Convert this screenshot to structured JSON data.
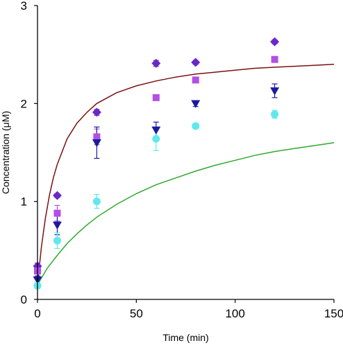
{
  "chart_data": {
    "type": "scatter",
    "xlabel": "Time (min)",
    "ylabel": "Concentration (μM)",
    "xlim": [
      0,
      150
    ],
    "ylim": [
      0,
      3
    ],
    "x_ticks": [
      0,
      50,
      100,
      150
    ],
    "y_ticks": [
      0,
      1,
      2,
      3
    ],
    "grid": false,
    "legend": "none",
    "series": [
      {
        "marker": "diamond",
        "color": "#6a28c8",
        "points": [
          {
            "x": 0,
            "y": 0.34,
            "err": 0.03
          },
          {
            "x": 10,
            "y": 1.06,
            "err": 0.02
          },
          {
            "x": 30,
            "y": 1.91,
            "err": 0.03
          },
          {
            "x": 60,
            "y": 2.41,
            "err": 0.03
          },
          {
            "x": 80,
            "y": 2.42,
            "err": 0.02
          },
          {
            "x": 120,
            "y": 2.63,
            "err": 0.02
          }
        ]
      },
      {
        "marker": "square",
        "color": "#b44ee6",
        "points": [
          {
            "x": 0,
            "y": 0.29,
            "err": 0.03
          },
          {
            "x": 10,
            "y": 0.88,
            "err": 0.08
          },
          {
            "x": 30,
            "y": 1.66,
            "err": 0.08
          },
          {
            "x": 60,
            "y": 2.06,
            "err": 0.02
          },
          {
            "x": 80,
            "y": 2.24,
            "err": 0.02
          },
          {
            "x": 120,
            "y": 2.45,
            "err": 0.02
          }
        ]
      },
      {
        "marker": "triangle-down",
        "color": "#1a1aa0",
        "points": [
          {
            "x": 0,
            "y": 0.2,
            "err": 0.04
          },
          {
            "x": 10,
            "y": 0.76,
            "err": 0.1
          },
          {
            "x": 30,
            "y": 1.6,
            "err": 0.16
          },
          {
            "x": 60,
            "y": 1.73,
            "err": 0.08
          },
          {
            "x": 80,
            "y": 2.0,
            "err": 0.03
          },
          {
            "x": 120,
            "y": 2.13,
            "err": 0.07
          }
        ]
      },
      {
        "marker": "circle",
        "color": "#5fe8ee",
        "points": [
          {
            "x": 0,
            "y": 0.14,
            "err": 0.03
          },
          {
            "x": 10,
            "y": 0.6,
            "err": 0.08
          },
          {
            "x": 30,
            "y": 1.0,
            "err": 0.07
          },
          {
            "x": 60,
            "y": 1.64,
            "err": 0.12
          },
          {
            "x": 80,
            "y": 1.77,
            "err": 0.02
          },
          {
            "x": 120,
            "y": 1.89,
            "err": 0.04
          }
        ]
      }
    ],
    "fit_curves": [
      {
        "color": "#7a1010",
        "points": [
          {
            "x": 0,
            "y": 0.15
          },
          {
            "x": 2,
            "y": 0.54
          },
          {
            "x": 4,
            "y": 0.83
          },
          {
            "x": 6,
            "y": 1.06
          },
          {
            "x": 8,
            "y": 1.24
          },
          {
            "x": 10,
            "y": 1.38
          },
          {
            "x": 15,
            "y": 1.64
          },
          {
            "x": 20,
            "y": 1.8
          },
          {
            "x": 25,
            "y": 1.91
          },
          {
            "x": 30,
            "y": 2.0
          },
          {
            "x": 40,
            "y": 2.11
          },
          {
            "x": 50,
            "y": 2.18
          },
          {
            "x": 60,
            "y": 2.23
          },
          {
            "x": 70,
            "y": 2.27
          },
          {
            "x": 80,
            "y": 2.3
          },
          {
            "x": 90,
            "y": 2.32
          },
          {
            "x": 100,
            "y": 2.34
          },
          {
            "x": 110,
            "y": 2.36
          },
          {
            "x": 120,
            "y": 2.37
          },
          {
            "x": 130,
            "y": 2.38
          },
          {
            "x": 140,
            "y": 2.39
          },
          {
            "x": 150,
            "y": 2.4
          }
        ]
      },
      {
        "color": "#2ea82e",
        "points": [
          {
            "x": 0,
            "y": 0.15
          },
          {
            "x": 5,
            "y": 0.32
          },
          {
            "x": 10,
            "y": 0.45
          },
          {
            "x": 15,
            "y": 0.57
          },
          {
            "x": 20,
            "y": 0.67
          },
          {
            "x": 25,
            "y": 0.76
          },
          {
            "x": 30,
            "y": 0.84
          },
          {
            "x": 40,
            "y": 0.97
          },
          {
            "x": 50,
            "y": 1.08
          },
          {
            "x": 60,
            "y": 1.17
          },
          {
            "x": 70,
            "y": 1.24
          },
          {
            "x": 80,
            "y": 1.31
          },
          {
            "x": 90,
            "y": 1.37
          },
          {
            "x": 100,
            "y": 1.42
          },
          {
            "x": 110,
            "y": 1.47
          },
          {
            "x": 120,
            "y": 1.51
          },
          {
            "x": 130,
            "y": 1.54
          },
          {
            "x": 140,
            "y": 1.57
          },
          {
            "x": 150,
            "y": 1.6
          }
        ]
      }
    ]
  }
}
